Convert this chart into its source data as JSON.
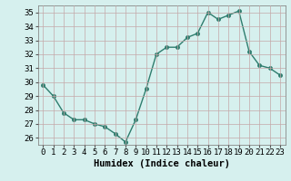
{
  "x": [
    0,
    1,
    2,
    3,
    4,
    5,
    6,
    7,
    8,
    9,
    10,
    11,
    12,
    13,
    14,
    15,
    16,
    17,
    18,
    19,
    20,
    21,
    22,
    23
  ],
  "y": [
    29.8,
    29.0,
    27.8,
    27.3,
    27.3,
    27.0,
    26.8,
    26.3,
    25.7,
    27.3,
    29.5,
    32.0,
    32.5,
    32.5,
    33.2,
    33.5,
    35.0,
    34.5,
    34.8,
    35.1,
    32.2,
    31.2,
    31.0,
    30.5
  ],
  "line_color": "#2e7d6e",
  "marker": "o",
  "markersize": 2.5,
  "linewidth": 1.0,
  "xlabel": "Humidex (Indice chaleur)",
  "ylim": [
    25.5,
    35.5
  ],
  "xlim": [
    -0.5,
    23.5
  ],
  "yticks": [
    26,
    27,
    28,
    29,
    30,
    31,
    32,
    33,
    34,
    35
  ],
  "xticks": [
    0,
    1,
    2,
    3,
    4,
    5,
    6,
    7,
    8,
    9,
    10,
    11,
    12,
    13,
    14,
    15,
    16,
    17,
    18,
    19,
    20,
    21,
    22,
    23
  ],
  "bg_color": "#d6f0ee",
  "grid_color": "#c4a8a8",
  "tick_fontsize": 6.5,
  "xlabel_fontsize": 7.5
}
